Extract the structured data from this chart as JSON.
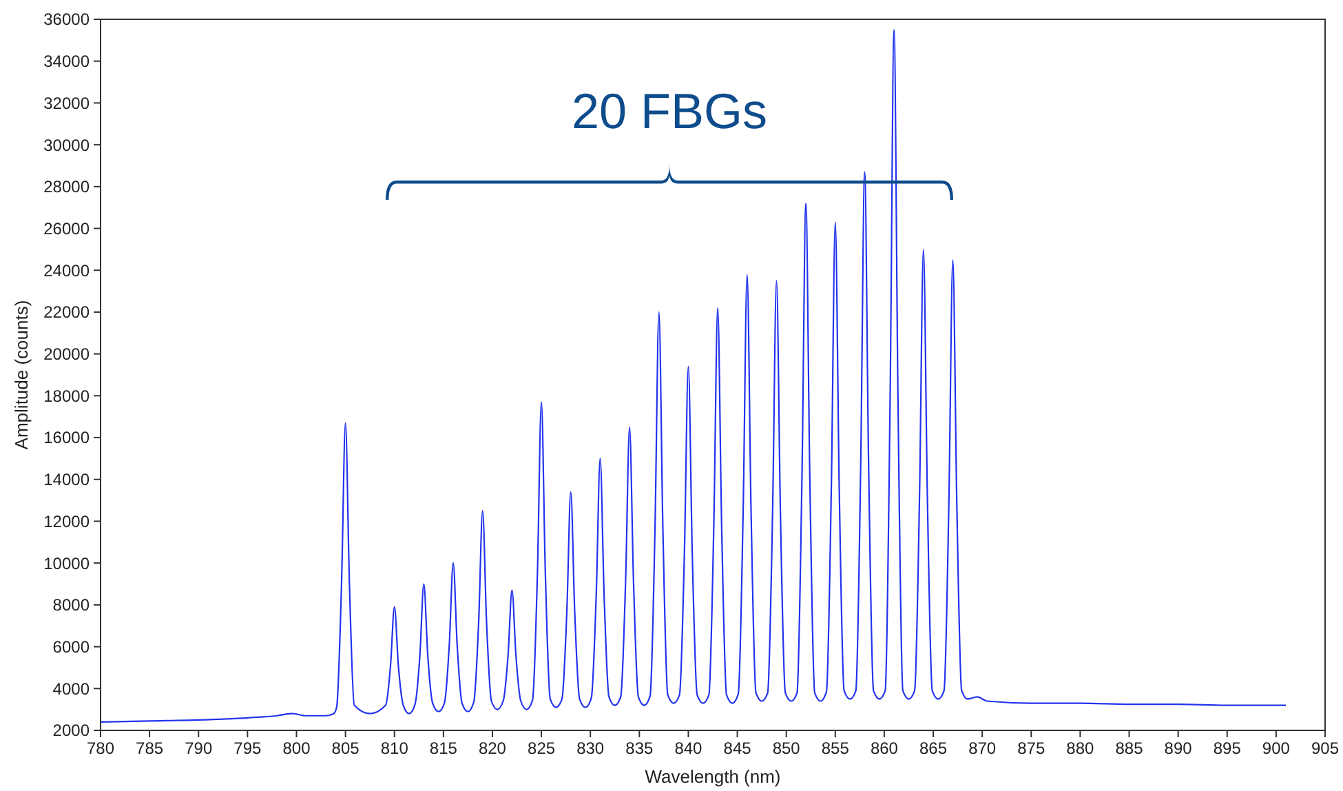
{
  "chart_data": {
    "type": "line",
    "xlabel": "Wavelength (nm)",
    "ylabel": "Amplitude (counts)",
    "annotations": [
      "20 FBGs"
    ],
    "xlim": [
      780,
      905
    ],
    "xticks": [
      780,
      785,
      790,
      795,
      800,
      805,
      810,
      815,
      820,
      825,
      830,
      835,
      840,
      845,
      850,
      855,
      860,
      865,
      870,
      875,
      880,
      885,
      890,
      895,
      900,
      905
    ],
    "ylim": [
      2000,
      36000
    ],
    "yticks": [
      2000,
      4000,
      6000,
      8000,
      10000,
      12000,
      14000,
      16000,
      18000,
      20000,
      22000,
      24000,
      26000,
      28000,
      30000,
      32000,
      34000,
      36000
    ],
    "grid": false,
    "line_style": "solid",
    "series": [
      {
        "color": "#2233ee",
        "x": [
          780,
          785,
          790,
          795,
          798,
          799.5,
          801,
          803,
          803.8,
          804.1,
          804.6,
          805,
          805.4,
          805.9,
          807.5,
          809.1,
          809.6,
          810,
          810.4,
          810.9,
          811.5,
          812.1,
          812.6,
          813,
          813.4,
          813.9,
          814.5,
          815.1,
          815.6,
          816,
          816.4,
          816.9,
          817.5,
          818.1,
          818.6,
          819,
          819.4,
          819.9,
          820.5,
          821.1,
          821.6,
          822,
          822.4,
          822.9,
          823.5,
          824.1,
          824.6,
          825,
          825.4,
          825.9,
          826.5,
          827.1,
          827.6,
          828,
          828.4,
          828.9,
          829.5,
          830.1,
          830.6,
          831,
          831.4,
          831.9,
          832.5,
          833.1,
          833.6,
          834,
          834.4,
          834.9,
          835.5,
          836.1,
          836.6,
          837,
          837.4,
          837.9,
          838.5,
          839.1,
          839.6,
          840,
          840.4,
          840.9,
          841.5,
          842.1,
          842.6,
          843,
          843.4,
          843.9,
          844.5,
          845.1,
          845.6,
          846,
          846.4,
          846.9,
          847.5,
          848.1,
          848.6,
          849,
          849.4,
          849.9,
          850.5,
          851.1,
          851.6,
          852,
          852.4,
          852.9,
          853.5,
          854.1,
          854.6,
          855,
          855.4,
          855.9,
          856.5,
          857.1,
          857.6,
          858,
          858.4,
          858.9,
          859.5,
          860.1,
          860.6,
          861,
          861.4,
          861.9,
          862.5,
          863.1,
          863.6,
          864,
          864.4,
          864.9,
          865.5,
          866.1,
          866.6,
          867,
          867.4,
          867.9,
          868.5,
          869.5,
          870.5,
          875,
          880,
          885,
          890,
          895,
          901
        ],
        "values": [
          2400,
          2450,
          2500,
          2600,
          2700,
          2800,
          2700,
          2700,
          2800,
          3100,
          9000,
          16700,
          9100,
          3200,
          2800,
          3200,
          5100,
          7900,
          5100,
          3200,
          2800,
          3250,
          5600,
          9000,
          5600,
          3300,
          2900,
          3300,
          6100,
          10000,
          6100,
          3300,
          2900,
          3350,
          7200,
          12500,
          7200,
          3400,
          3000,
          3400,
          5600,
          8700,
          5600,
          3400,
          3000,
          3450,
          9600,
          17700,
          9600,
          3500,
          3100,
          3500,
          7700,
          13400,
          7700,
          3500,
          3100,
          3550,
          8500,
          15000,
          8500,
          3600,
          3200,
          3600,
          9200,
          16500,
          9200,
          3600,
          3200,
          3650,
          11700,
          22000,
          11700,
          3700,
          3300,
          3700,
          10500,
          19400,
          10500,
          3700,
          3300,
          3700,
          11800,
          22200,
          11800,
          3700,
          3300,
          3750,
          12600,
          23800,
          12600,
          3800,
          3400,
          3800,
          12400,
          23500,
          12400,
          3800,
          3400,
          3800,
          14100,
          27200,
          14100,
          3800,
          3400,
          3850,
          13700,
          26300,
          13700,
          3900,
          3500,
          3900,
          14800,
          28700,
          14800,
          3900,
          3500,
          3900,
          17900,
          35500,
          17900,
          3900,
          3500,
          3900,
          13200,
          25000,
          13200,
          3900,
          3500,
          3900,
          13000,
          24500,
          13000,
          3900,
          3500,
          3600,
          3400,
          3300,
          3300,
          3250,
          3250,
          3200,
          3200
        ]
      }
    ]
  }
}
